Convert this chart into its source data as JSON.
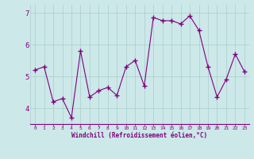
{
  "x": [
    0,
    1,
    2,
    3,
    4,
    5,
    6,
    7,
    8,
    9,
    10,
    11,
    12,
    13,
    14,
    15,
    16,
    17,
    18,
    19,
    20,
    21,
    22,
    23
  ],
  "y": [
    5.2,
    5.3,
    4.2,
    4.3,
    3.7,
    5.8,
    4.35,
    4.55,
    4.65,
    4.4,
    5.3,
    5.5,
    4.7,
    6.85,
    6.75,
    6.75,
    6.65,
    6.9,
    6.45,
    5.3,
    4.35,
    4.9,
    5.7,
    5.15
  ],
  "line_color": "#800080",
  "marker": "+",
  "marker_color": "#800080",
  "bg_color": "#cce8e8",
  "grid_color": "#aacece",
  "xlabel": "Windchill (Refroidissement éolien,°C)",
  "xlabel_color": "#800080",
  "xtick_color": "#800080",
  "ytick_color": "#800080",
  "ylim": [
    3.5,
    7.25
  ],
  "yticks": [
    4,
    5,
    6,
    7
  ],
  "xticks": [
    0,
    1,
    2,
    3,
    4,
    5,
    6,
    7,
    8,
    9,
    10,
    11,
    12,
    13,
    14,
    15,
    16,
    17,
    18,
    19,
    20,
    21,
    22,
    23
  ]
}
